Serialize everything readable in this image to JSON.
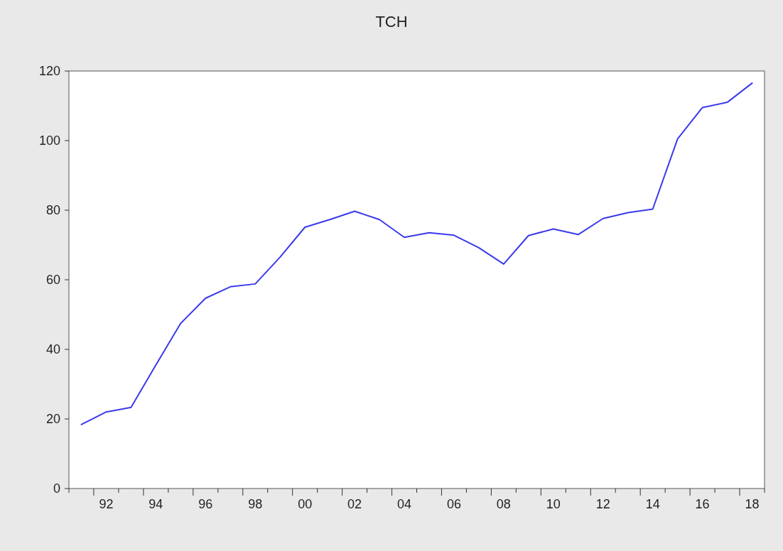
{
  "chart_data": {
    "type": "line",
    "title": "TCH",
    "categories": [
      null,
      "92",
      null,
      "94",
      null,
      "96",
      null,
      "98",
      null,
      "00",
      null,
      "02",
      null,
      "04",
      null,
      "06",
      null,
      "08",
      null,
      "10",
      null,
      "12",
      null,
      "14",
      null,
      "16",
      null,
      "18"
    ],
    "series": [
      {
        "color": "#3a3aec",
        "values": [
          18.4,
          22,
          23.3,
          35.5,
          47.5,
          54.7,
          58,
          58.8,
          66.5,
          75.1,
          77.3,
          79.7,
          77.3,
          72.2,
          73.5,
          72.8,
          69.2,
          64.5,
          72.7,
          74.6,
          73,
          77.6,
          79.3,
          80.3,
          100.5,
          109.5,
          111,
          116.5
        ]
      }
    ],
    "ylim": [
      0,
      120
    ],
    "yticks": [
      0,
      20,
      40,
      60,
      80,
      100,
      120
    ],
    "grid": false,
    "marker": "none",
    "line_style": "solid"
  }
}
